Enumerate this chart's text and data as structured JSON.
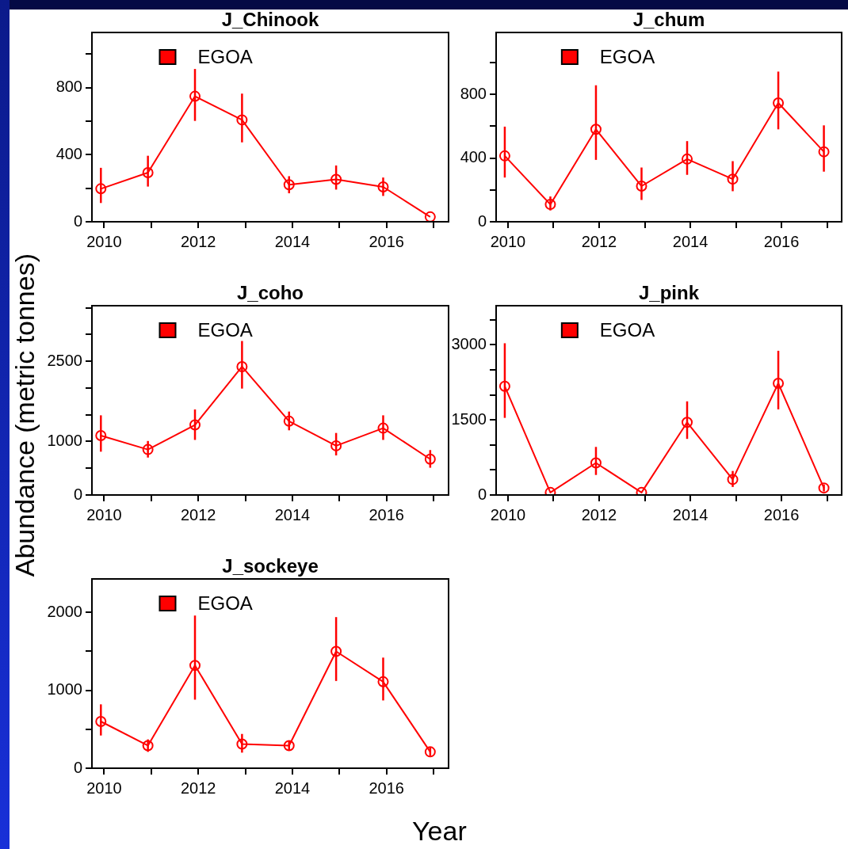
{
  "chart_data": [
    {
      "type": "line",
      "title": "J_Chinook",
      "x": [
        2009.93,
        2010.93,
        2011.93,
        2012.93,
        2013.93,
        2014.93,
        2015.93,
        2016.93
      ],
      "xlim": [
        2009.74,
        2017.32
      ],
      "xticks": [
        2010,
        {
          "value": 2011,
          "label": null
        },
        2012,
        {
          "value": 2013,
          "label": null
        },
        2014,
        {
          "value": 2015,
          "label": null
        },
        2016,
        {
          "value": 2017,
          "label": null
        }
      ],
      "ylim": [
        0,
        1130
      ],
      "yticks": [
        0,
        {
          "value": 200,
          "label": null
        },
        400,
        {
          "value": 600,
          "label": null
        },
        800,
        {
          "value": 1000,
          "label": null
        }
      ],
      "marker": "circle",
      "legend": "top left",
      "grid": false,
      "series": [
        {
          "name": "EGOA",
          "color": "#ff0000",
          "values": [
            197,
            293,
            749,
            608,
            221,
            253,
            208,
            29
          ],
          "errors": [
            [
              112,
              322
            ],
            [
              210,
              394
            ],
            [
              602,
              912
            ],
            [
              474,
              765
            ],
            [
              170,
              272
            ],
            [
              192,
              336
            ],
            [
              154,
              264
            ],
            null
          ]
        }
      ]
    },
    {
      "type": "line",
      "title": "J_chum",
      "x": [
        2009.93,
        2010.93,
        2011.93,
        2012.93,
        2013.93,
        2014.93,
        2015.93,
        2016.93
      ],
      "xlim": [
        2009.74,
        2017.32
      ],
      "xticks": [
        2010,
        {
          "value": 2011,
          "label": null
        },
        2012,
        {
          "value": 2013,
          "label": null
        },
        2014,
        {
          "value": 2015,
          "label": null
        },
        2016,
        {
          "value": 2017,
          "label": null
        }
      ],
      "ylim": [
        0,
        1190
      ],
      "yticks": [
        0,
        {
          "value": 200,
          "label": null
        },
        400,
        {
          "value": 600,
          "label": null
        },
        800,
        {
          "value": 1000,
          "label": null
        }
      ],
      "marker": "circle",
      "legend": "top left",
      "grid": false,
      "series": [
        {
          "name": "EGOA",
          "color": "#ff0000",
          "values": [
            414,
            109,
            581,
            224,
            394,
            268,
            747,
            440
          ],
          "errors": [
            [
              278,
              598
            ],
            [
              71,
              159
            ],
            [
              389,
              858
            ],
            [
              137,
              341
            ],
            [
              295,
              507
            ],
            [
              192,
              381
            ],
            [
              581,
              944
            ],
            [
              315,
              606
            ]
          ]
        }
      ]
    },
    {
      "type": "line",
      "title": "J_coho",
      "ylabel": "Abundance (metric tonnes)",
      "x": [
        2009.93,
        2010.93,
        2011.93,
        2012.93,
        2013.93,
        2014.93,
        2015.93,
        2016.93
      ],
      "xlim": [
        2009.74,
        2017.32
      ],
      "xticks": [
        2010,
        {
          "value": 2011,
          "label": null
        },
        2012,
        {
          "value": 2013,
          "label": null
        },
        2014,
        {
          "value": 2015,
          "label": null
        },
        2016,
        {
          "value": 2017,
          "label": null
        }
      ],
      "ylim": [
        0,
        3540
      ],
      "yticks": [
        0,
        {
          "value": 500,
          "label": null
        },
        1000,
        {
          "value": 1500,
          "label": null
        },
        {
          "value": 2000,
          "label": null
        },
        2500,
        {
          "value": 3000,
          "label": null
        },
        {
          "value": 3500,
          "label": null
        }
      ],
      "marker": "circle",
      "legend": "top left",
      "grid": false,
      "series": [
        {
          "name": "EGOA",
          "color": "#ff0000",
          "values": [
            1110,
            850,
            1310,
            2400,
            1380,
            920,
            1250,
            670
          ],
          "errors": [
            [
              810,
              1490
            ],
            [
              700,
              1010
            ],
            [
              1030,
              1600
            ],
            [
              1990,
              2880
            ],
            [
              1210,
              1560
            ],
            [
              740,
              1160
            ],
            [
              1030,
              1490
            ],
            [
              510,
              840
            ]
          ]
        }
      ]
    },
    {
      "type": "line",
      "title": "J_pink",
      "x": [
        2009.93,
        2010.93,
        2011.93,
        2012.93,
        2013.93,
        2014.93,
        2015.93,
        2016.93
      ],
      "xlim": [
        2009.74,
        2017.32
      ],
      "xticks": [
        2010,
        {
          "value": 2011,
          "label": null
        },
        2012,
        {
          "value": 2013,
          "label": null
        },
        2014,
        {
          "value": 2015,
          "label": null
        },
        2016,
        {
          "value": 2017,
          "label": null
        }
      ],
      "ylim": [
        0,
        3780
      ],
      "yticks": [
        0,
        {
          "value": 500,
          "label": null
        },
        {
          "value": 1000,
          "label": null
        },
        1500,
        {
          "value": 2000,
          "label": null
        },
        {
          "value": 2500,
          "label": null
        },
        3000,
        {
          "value": 3500,
          "label": null
        }
      ],
      "marker": "circle",
      "legend": "top left",
      "grid": false,
      "series": [
        {
          "name": "EGOA",
          "color": "#ff0000",
          "values": [
            2170,
            50,
            640,
            50,
            1450,
            310,
            2230,
            140
          ],
          "errors": [
            [
              1540,
              3030
            ],
            null,
            [
              400,
              960
            ],
            null,
            [
              1120,
              1870
            ],
            [
              160,
              480
            ],
            [
              1710,
              2880
            ],
            [
              70,
              210
            ]
          ]
        }
      ]
    },
    {
      "type": "line",
      "title": "J_sockeye",
      "xlabel": "Year",
      "x": [
        2009.93,
        2010.93,
        2011.93,
        2012.93,
        2013.93,
        2014.93,
        2015.93,
        2016.93
      ],
      "xlim": [
        2009.74,
        2017.32
      ],
      "xticks": [
        2010,
        {
          "value": 2011,
          "label": null
        },
        2012,
        {
          "value": 2013,
          "label": null
        },
        2014,
        {
          "value": 2015,
          "label": null
        },
        2016,
        {
          "value": 2017,
          "label": null
        }
      ],
      "ylim": [
        0,
        2430
      ],
      "yticks": [
        0,
        {
          "value": 500,
          "label": null
        },
        1000,
        {
          "value": 1500,
          "label": null
        },
        2000
      ],
      "marker": "circle",
      "legend": "top left",
      "grid": false,
      "series": [
        {
          "name": "EGOA",
          "color": "#ff0000",
          "values": [
            600,
            290,
            1320,
            310,
            290,
            1500,
            1110,
            210
          ],
          "errors": [
            [
              420,
              820
            ],
            [
              210,
              370
            ],
            [
              880,
              1960
            ],
            [
              200,
              440
            ],
            [
              230,
              350
            ],
            [
              1120,
              1940
            ],
            [
              870,
              1420
            ],
            [
              160,
              270
            ]
          ]
        }
      ]
    }
  ]
}
